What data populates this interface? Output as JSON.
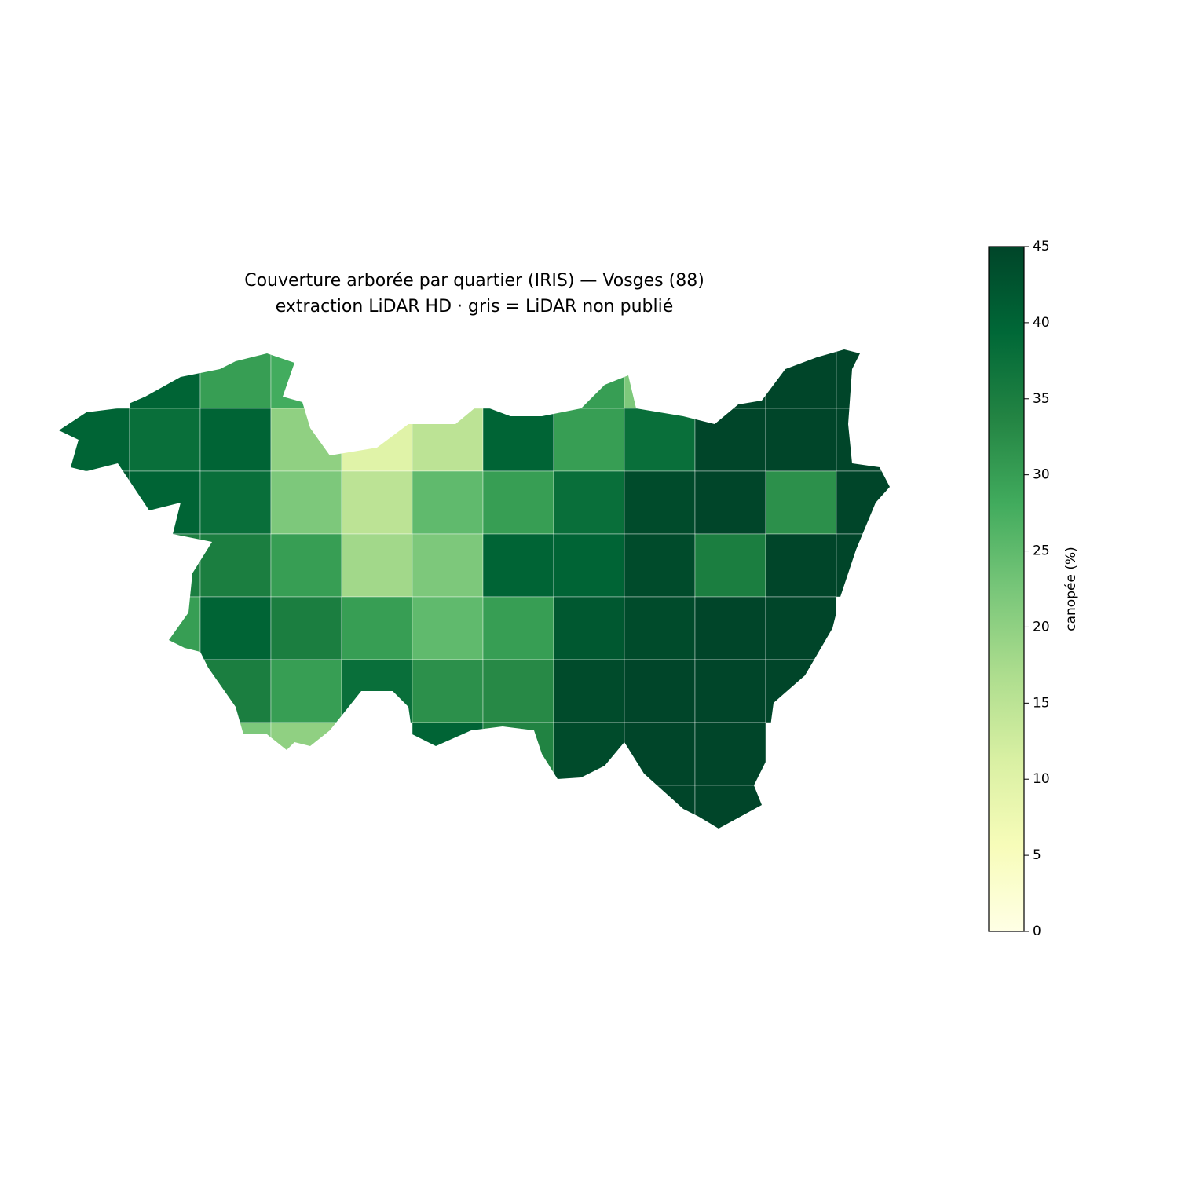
{
  "chart_data": {
    "type": "choropleth",
    "title": "Couverture arborée par quartier (IRIS) — Vosges (88)",
    "subtitle": "extraction LiDAR HD · gris = LiDAR non publié",
    "colorbar_label": "canopée (%)",
    "clim": [
      0,
      45
    ],
    "cticks": [
      0,
      5,
      10,
      15,
      20,
      25,
      30,
      35,
      40,
      45
    ],
    "colormap": [
      "#ffffe5",
      "#f7fcb9",
      "#d9f0a3",
      "#addd8e",
      "#78c679",
      "#41ab5d",
      "#238443",
      "#006837",
      "#004529"
    ],
    "values": [
      40,
      30,
      28,
      30,
      22,
      45,
      45,
      45,
      40,
      38,
      40,
      20,
      10,
      15,
      40,
      30,
      38,
      45,
      45,
      45,
      42,
      40,
      38,
      22,
      15,
      25,
      30,
      38,
      44,
      45,
      32,
      45,
      35,
      35,
      30,
      18,
      22,
      40,
      40,
      44,
      35,
      45,
      45,
      30,
      40,
      35,
      30,
      25,
      30,
      42,
      44,
      45,
      45,
      35,
      30,
      38,
      32,
      33,
      44,
      45,
      45,
      45,
      22,
      20,
      40,
      34,
      44,
      45,
      45,
      45,
      45
    ]
  }
}
